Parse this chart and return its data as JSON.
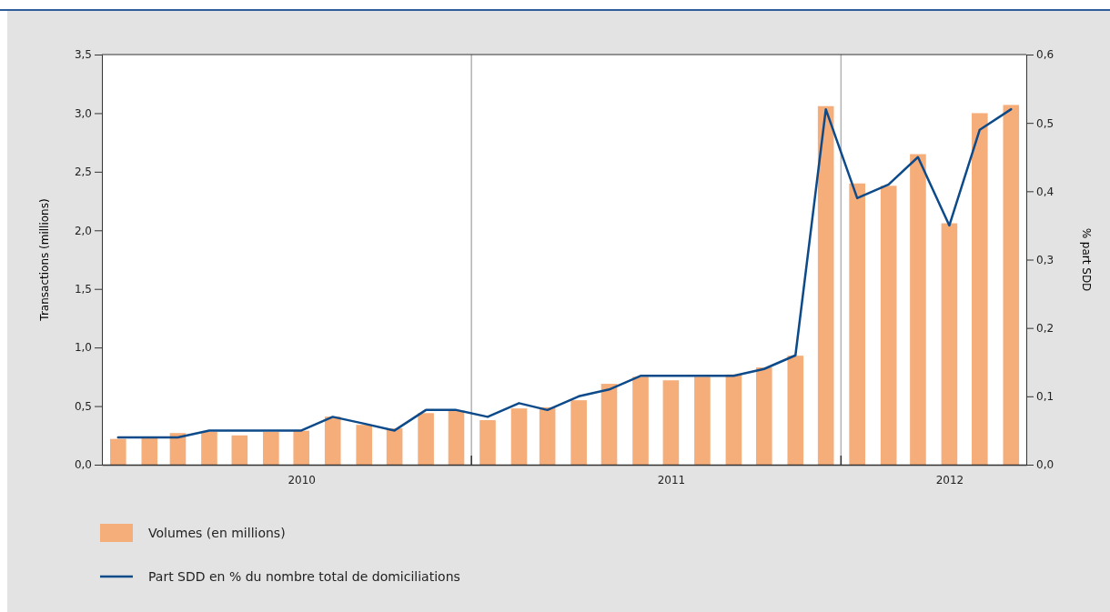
{
  "chart_data": {
    "type": "bar",
    "x": [
      "2010-01",
      "2010-02",
      "2010-03",
      "2010-04",
      "2010-05",
      "2010-06",
      "2010-07",
      "2010-08",
      "2010-09",
      "2010-10",
      "2010-11",
      "2010-12",
      "2011-01",
      "2011-02",
      "2011-03",
      "2011-04",
      "2011-05",
      "2011-06",
      "2011-07",
      "2011-08",
      "2011-09",
      "2011-10",
      "2011-11",
      "2011-12",
      "2012-01",
      "2012-02",
      "2012-03",
      "2012-04",
      "2012-05",
      "2012-06"
    ],
    "series": [
      {
        "name": "Volumes (en millions)",
        "color": "#f5ad7a",
        "values": [
          0.22,
          0.23,
          0.27,
          0.28,
          0.25,
          0.28,
          0.29,
          0.41,
          0.34,
          0.31,
          0.44,
          0.46,
          0.38,
          0.48,
          0.49,
          0.55,
          0.69,
          0.75,
          0.72,
          0.75,
          0.77,
          0.83,
          0.93,
          3.06,
          2.4,
          2.38,
          2.65,
          2.06,
          3.0,
          3.07
        ]
      },
      {
        "name": "Part SDD en % du nombre total de domiciliations",
        "type": "line",
        "axis": "y2",
        "color": "#0d4a8a",
        "values": [
          0.04,
          0.04,
          0.04,
          0.05,
          0.05,
          0.05,
          0.05,
          0.07,
          0.06,
          0.05,
          0.08,
          0.08,
          0.07,
          0.09,
          0.08,
          0.1,
          0.11,
          0.13,
          0.13,
          0.13,
          0.13,
          0.14,
          0.16,
          0.52,
          0.39,
          0.41,
          0.45,
          0.35,
          0.49,
          0.52
        ]
      }
    ],
    "xlim": [
      "2009-12-16",
      "2012-06-16"
    ],
    "xticks": [
      {
        "value": "2010-07-01",
        "label": "2010"
      },
      {
        "value": "2011-07-01",
        "label": "2011"
      },
      {
        "value": "2012-04-01",
        "label": "2012"
      }
    ],
    "ylim": [
      0,
      3.5
    ],
    "yticks": [
      {
        "value": 0,
        "label": "0,0"
      },
      {
        "value": 0.5,
        "label": "0,5"
      },
      {
        "value": 1,
        "label": "1,0"
      },
      {
        "value": 1.5,
        "label": "1,5"
      },
      {
        "value": 2,
        "label": "2,0"
      },
      {
        "value": 2.5,
        "label": "2,5"
      },
      {
        "value": 3,
        "label": "3,0"
      },
      {
        "value": 3.5,
        "label": "3,5"
      }
    ],
    "y2lim": [
      0,
      0.6
    ],
    "y2ticks": [
      {
        "value": 0,
        "label": "0,0"
      },
      {
        "value": 0.1,
        "label": "0,1"
      },
      {
        "value": 0.2,
        "label": "0,2"
      },
      {
        "value": 0.3,
        "label": "0,3"
      },
      {
        "value": 0.4,
        "label": "0,4"
      },
      {
        "value": 0.5,
        "label": "0,5"
      },
      {
        "value": 0.6,
        "label": "0,6"
      }
    ],
    "ylabel": "Transactions (millions)",
    "y2label": "% part SDD",
    "ref_lines": [
      {
        "axis": "x",
        "value": "2010-12-16",
        "color": "#b3b3b3"
      },
      {
        "axis": "x",
        "value": "2011-12-16",
        "color": "#b3b3b3"
      }
    ],
    "legend": "bottom",
    "grid": false,
    "line_style": "solid",
    "marker": "none"
  }
}
